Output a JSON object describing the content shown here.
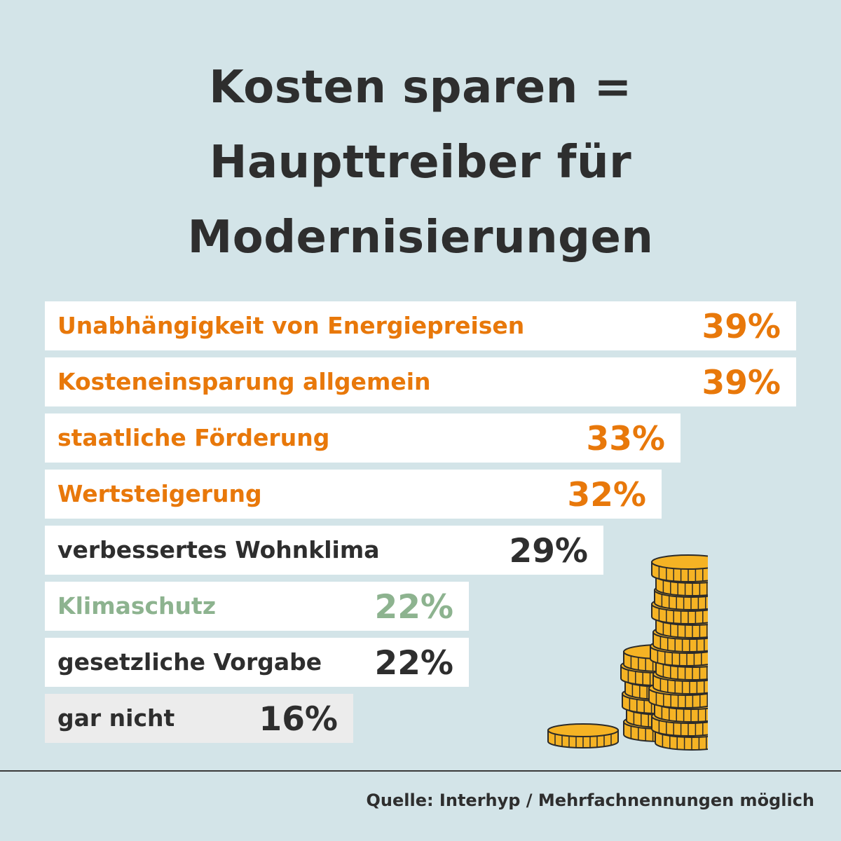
{
  "title": {
    "line1": "Kosten sparen =",
    "line2": "Haupttreiber für",
    "line3": "Modernisierungen"
  },
  "chart_data": {
    "type": "bar",
    "orientation": "horizontal",
    "categories": [
      "Unabhängigkeit von Energiepreisen",
      "Kosteneinsparung allgemein",
      "staatliche Förderung",
      "Wertsteigerung",
      "verbessertes Wohnklima",
      "Klimaschutz",
      "gesetzliche Vorgabe",
      "gar nicht"
    ],
    "values": [
      39,
      39,
      33,
      32,
      29,
      22,
      22,
      16
    ],
    "value_labels": [
      "39%",
      "39%",
      "33%",
      "32%",
      "29%",
      "22%",
      "22%",
      "16%"
    ],
    "unit": "%",
    "text_colors": [
      "#e8780a",
      "#e8780a",
      "#e8780a",
      "#e8780a",
      "#2e2e2e",
      "#8db38f",
      "#2e2e2e",
      "#2e2e2e"
    ],
    "bar_colors": [
      "#ffffff",
      "#ffffff",
      "#ffffff",
      "#ffffff",
      "#ffffff",
      "#ffffff",
      "#ffffff",
      "#ececec"
    ],
    "xlim": [
      0,
      39
    ]
  },
  "colors": {
    "background": "#d3e4e8",
    "accent": "#e8780a",
    "green": "#8db38f",
    "text": "#2e2e2e",
    "coin": "#f5b324"
  },
  "decoration": "coins-icon",
  "footer": {
    "source": "Quelle: Interhyp / Mehrfachnennungen möglich"
  }
}
